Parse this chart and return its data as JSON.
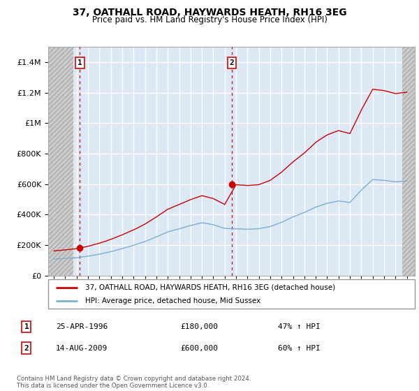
{
  "title": "37, OATHALL ROAD, HAYWARDS HEATH, RH16 3EG",
  "subtitle": "Price paid vs. HM Land Registry's House Price Index (HPI)",
  "legend_line1": "37, OATHALL ROAD, HAYWARDS HEATH, RH16 3EG (detached house)",
  "legend_line2": "HPI: Average price, detached house, Mid Sussex",
  "annotation1_label": "1",
  "annotation1_date": "25-APR-1996",
  "annotation1_price": "£180,000",
  "annotation1_hpi": "47% ↑ HPI",
  "annotation1_year": 1996.29,
  "annotation1_value": 180000,
  "annotation2_label": "2",
  "annotation2_date": "14-AUG-2009",
  "annotation2_price": "£600,000",
  "annotation2_hpi": "60% ↑ HPI",
  "annotation2_year": 2009.62,
  "annotation2_value": 600000,
  "footer": "Contains HM Land Registry data © Crown copyright and database right 2024.\nThis data is licensed under the Open Government Licence v3.0.",
  "red_line_color": "#cc0000",
  "blue_line_color": "#7bafd4",
  "chart_bg": "#dde8f5",
  "grid_color": "#ffffff",
  "ylim": [
    0,
    1500000
  ],
  "xlim_start": 1993.5,
  "xlim_end": 2025.7,
  "hatch_left_end": 1995.7,
  "hatch_right_start": 2024.58
}
